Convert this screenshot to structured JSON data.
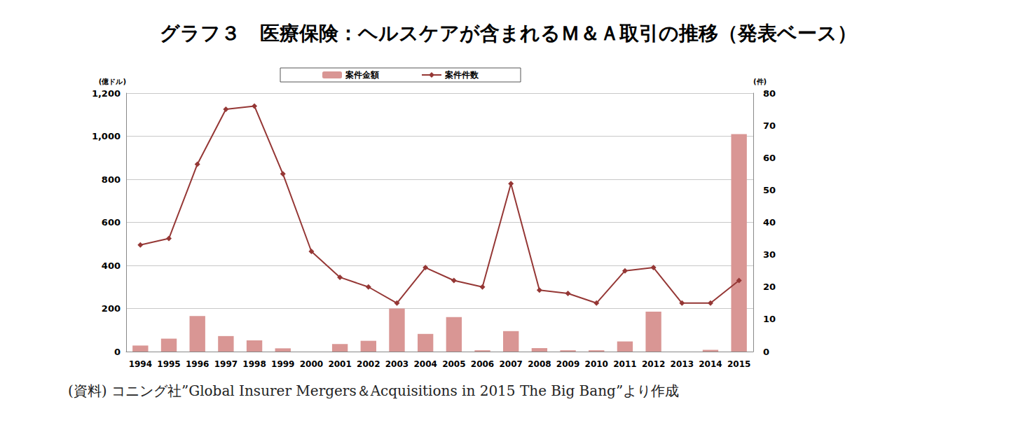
{
  "chart_data": {
    "type": "bar",
    "title": "グラフ３　医療保険：ヘルスケアが含まれるＭ＆Ａ取引の推移（発表ベース）",
    "source": "(資料) コニング社”Global Insurer Mergers＆Acquisitions in 2015 The Big Bang”より作成",
    "y_label": "(億ドル)",
    "y2_label": "(件)",
    "categories": [
      "1994",
      "1995",
      "1996",
      "1997",
      "1998",
      "1999",
      "2000",
      "2001",
      "2002",
      "2003",
      "2004",
      "2005",
      "2006",
      "2007",
      "2008",
      "2009",
      "2010",
      "2011",
      "2012",
      "2013",
      "2014",
      "2015"
    ],
    "series": [
      {
        "name": "案件金額",
        "type": "bar",
        "color": "#d99694",
        "values": [
          28,
          60,
          165,
          72,
          52,
          15,
          0,
          35,
          50,
          200,
          82,
          160,
          6,
          95,
          16,
          6,
          6,
          47,
          185,
          0,
          8,
          1010
        ]
      },
      {
        "name": "案件件数",
        "type": "line",
        "axis": "y2",
        "color": "#953735",
        "marker": "diamond",
        "line_style": "solid",
        "values": [
          33,
          35,
          58,
          75,
          76,
          55,
          31,
          23,
          20,
          15,
          26,
          22,
          20,
          52,
          19,
          18,
          15,
          25,
          26,
          15,
          15,
          22
        ]
      }
    ],
    "ylim": [
      0,
      1200
    ],
    "yticks": [
      0,
      200,
      400,
      600,
      800,
      1000,
      1200
    ],
    "y2lim": [
      0,
      80
    ],
    "y2ticks": [
      0,
      10,
      20,
      30,
      40,
      50,
      60,
      70,
      80
    ],
    "grid": true,
    "legend": "top"
  }
}
